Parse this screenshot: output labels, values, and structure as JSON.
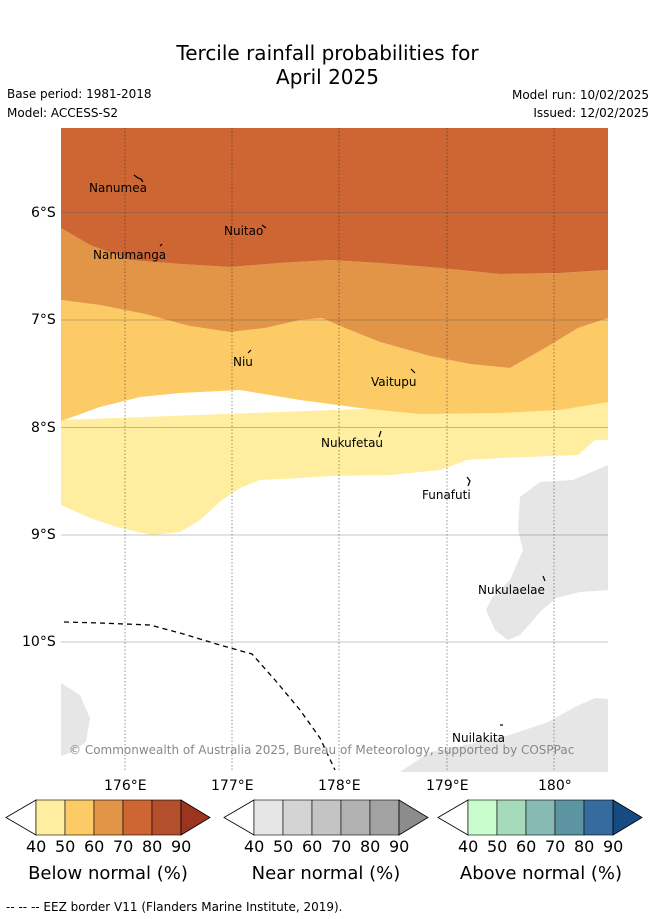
{
  "title_line1": "Tercile rainfall probabilities for",
  "title_line2": "April 2025",
  "base_period": "Base period: 1981-2018",
  "model": "Model: ACCESS-S2",
  "model_run": "Model run: 10/02/2025",
  "issued": "Issued: 12/02/2025",
  "attribution": "© Commonwealth of Australia 2025, Bureau of Meteorology, supported by COSPPac",
  "footer": "--  --  -- EEZ border V11 (Flanders Marine Institute, 2019).",
  "lat_ticks": [
    "6°S",
    "7°S",
    "8°S",
    "9°S",
    "10°S"
  ],
  "lon_ticks": [
    "176°E",
    "177°E",
    "178°E",
    "179°E",
    "180°"
  ],
  "places": [
    "Nanumea",
    "Nuitao",
    "Nanumanga",
    "Niu",
    "Vaitupu",
    "Nukufetau",
    "Funafuti",
    "Nukulaelae",
    "Nuilakita"
  ],
  "colorbars": [
    {
      "title": "Below normal (%)",
      "ticks": [
        "40",
        "50",
        "60",
        "70",
        "80",
        "90"
      ],
      "colors": [
        "#ffeea0",
        "#fdcb66",
        "#e29547",
        "#cd6633",
        "#b34f2a",
        "#9c3520"
      ]
    },
    {
      "title": "Near normal (%)",
      "ticks": [
        "40",
        "50",
        "60",
        "70",
        "80",
        "90"
      ],
      "colors": [
        "#e6e6e6",
        "#d4d4d4",
        "#c4c4c4",
        "#b2b2b2",
        "#a2a2a2",
        "#8c8c8c"
      ]
    },
    {
      "title": "Above normal (%)",
      "ticks": [
        "40",
        "50",
        "60",
        "70",
        "80",
        "90"
      ],
      "colors": [
        "#c9fdcd",
        "#a5dabb",
        "#86bab3",
        "#5d94a2",
        "#356b9e",
        "#154b82"
      ]
    }
  ],
  "colors": {
    "below_70_80": "#cd6633",
    "below_60_70": "#e29547",
    "below_50_60": "#fdcb66",
    "below_40_50": "#ffeea0",
    "near_40_50": "#e6e6e6"
  }
}
